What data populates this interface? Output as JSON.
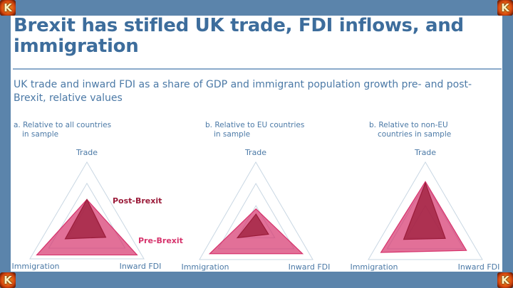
{
  "title": "Brexit has stifled UK trade, FDI inflows, and immigration",
  "subtitle": "UK trade and inward FDI as a share of GDP and immigrant population growth pre- and post-Brexit, relative values",
  "logo_glyph": "K",
  "legend": {
    "post": "Post-Brexit",
    "pre": "Pre-Brexit"
  },
  "colors": {
    "post": "#9b1c3a",
    "pre": "#d6336c",
    "grid": "#c9d7e3",
    "text": "#4b79a6",
    "frame": "#5b84ab"
  },
  "panels": [
    {
      "title_line1": "a. Relative to all countries",
      "title_line2": "in sample"
    },
    {
      "title_line1": "b. Relative to EU countries",
      "title_line2": "in sample"
    },
    {
      "title_line1": "b. Relative to non-EU",
      "title_line2": "countries in sample"
    }
  ],
  "chart_data": [
    {
      "type": "radar",
      "title": "a. Relative to all countries in sample",
      "axes": [
        "Trade",
        "Immigration",
        "Inward FDI"
      ],
      "rings": [
        0.33,
        0.67,
        1.0
      ],
      "series": [
        {
          "name": "Pre-Brexit",
          "values": [
            0.42,
            0.88,
            0.88
          ]
        },
        {
          "name": "Post-Brexit",
          "values": [
            0.42,
            0.38,
            0.33
          ]
        }
      ]
    },
    {
      "type": "radar",
      "title": "b. Relative to EU countries in sample",
      "axes": [
        "Trade",
        "Immigration",
        "Inward FDI"
      ],
      "rings": [
        0.33,
        0.67,
        1.0
      ],
      "series": [
        {
          "name": "Pre-Brexit",
          "values": [
            0.28,
            0.82,
            0.82
          ]
        },
        {
          "name": "Post-Brexit",
          "values": [
            0.2,
            0.33,
            0.22
          ]
        }
      ]
    },
    {
      "type": "radar",
      "title": "b. Relative to non-EU countries in sample",
      "axes": [
        "Trade",
        "Immigration",
        "Inward FDI"
      ],
      "rings": [
        0.33,
        0.67,
        1.0
      ],
      "series": [
        {
          "name": "Pre-Brexit",
          "values": [
            0.7,
            0.78,
            0.72
          ]
        },
        {
          "name": "Post-Brexit",
          "values": [
            0.68,
            0.38,
            0.35
          ]
        }
      ]
    }
  ]
}
